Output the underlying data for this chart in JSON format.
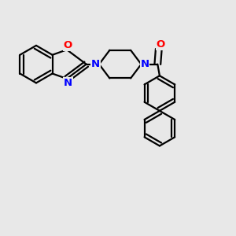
{
  "background_color": "#e8e8e8",
  "bond_color": "#000000",
  "N_color": "#0000ff",
  "O_color": "#ff0000",
  "line_width": 1.6,
  "font_size_atom": 9.5,
  "fig_w": 3.0,
  "fig_h": 3.0,
  "dpi": 100,
  "xlim": [
    0,
    10
  ],
  "ylim": [
    -1,
    9
  ],
  "dbo_ring": 0.12,
  "dbo_co": 0.13
}
